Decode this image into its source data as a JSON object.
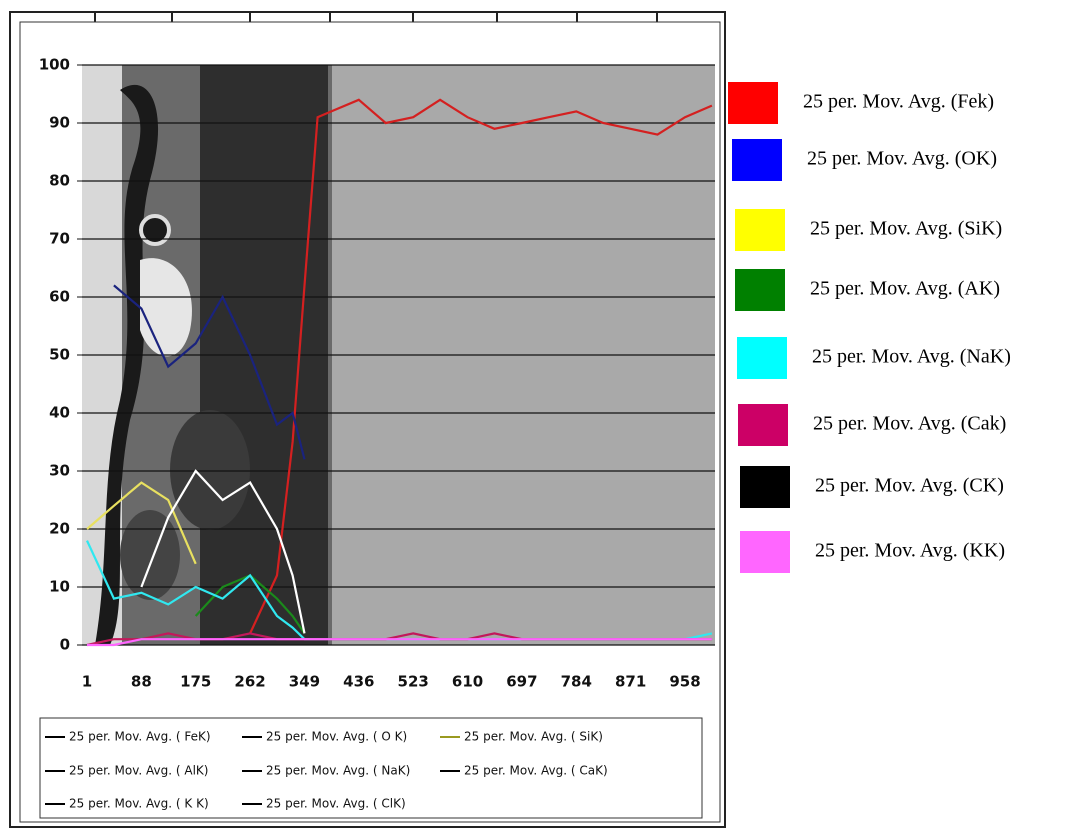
{
  "chart_data": {
    "type": "line",
    "x": [
      1,
      44,
      88,
      131,
      175,
      218,
      262,
      305,
      330,
      349,
      370,
      392,
      436,
      479,
      523,
      566,
      610,
      653,
      697,
      740,
      784,
      827,
      871,
      914,
      958,
      1001
    ],
    "xlim": [
      -7,
      1006
    ],
    "xticks": [
      1,
      88,
      175,
      262,
      349,
      436,
      523,
      610,
      697,
      784,
      871,
      958
    ],
    "ylim": [
      0,
      100
    ],
    "yticks": [
      0,
      10,
      20,
      30,
      40,
      50,
      60,
      70,
      80,
      90,
      100
    ],
    "grid": true,
    "series": [
      {
        "name": "25 per. Mov. Avg. ( FeK)",
        "color": "#d42020",
        "legend_color": "#000000",
        "values": [
          null,
          null,
          null,
          null,
          null,
          null,
          2,
          12,
          35,
          62,
          91,
          92,
          94,
          90,
          91,
          94,
          91,
          89,
          90,
          91,
          92,
          90,
          89,
          88,
          91,
          93
        ]
      },
      {
        "name": "25 per. Mov. Avg. ( O K)",
        "color": "#1a237e",
        "legend_color": "#000000",
        "values": [
          null,
          62,
          58,
          48,
          52,
          60,
          50,
          38,
          40,
          32,
          null,
          null,
          null,
          null,
          null,
          null,
          null,
          null,
          null,
          null,
          null,
          null,
          null,
          null,
          null,
          null
        ]
      },
      {
        "name": "25 per. Mov. Avg. ( SiK)",
        "color": "#e8e060",
        "legend_color": "#9a9a20",
        "values": [
          20,
          24,
          28,
          25,
          14,
          null,
          null,
          null,
          null,
          null,
          null,
          null,
          null,
          null,
          null,
          null,
          null,
          null,
          null,
          null,
          null,
          null,
          null,
          null,
          null,
          null
        ]
      },
      {
        "name": "25 per. Mov. Avg. ( AlK)",
        "color": "#1b8a1b",
        "legend_color": "#000000",
        "values": [
          null,
          null,
          null,
          null,
          5,
          10,
          12,
          8,
          5,
          2,
          null,
          null,
          null,
          null,
          null,
          null,
          null,
          null,
          null,
          null,
          null,
          null,
          null,
          null,
          null,
          null
        ]
      },
      {
        "name": "25 per. Mov. Avg. ( NaK)",
        "color": "#30e8f0",
        "legend_color": "#000000",
        "values": [
          18,
          8,
          9,
          7,
          10,
          8,
          12,
          5,
          3,
          1,
          1,
          1,
          1,
          1,
          1,
          1,
          1,
          1,
          1,
          1,
          1,
          1,
          1,
          1,
          1,
          2
        ]
      },
      {
        "name": "25 per. Mov. Avg. ( CaK)",
        "color": "#c2185b",
        "legend_color": "#000000",
        "values": [
          0,
          1,
          1,
          2,
          1,
          1,
          2,
          1,
          1,
          1,
          1,
          1,
          1,
          1,
          2,
          1,
          1,
          2,
          1,
          1,
          1,
          1,
          1,
          1,
          1,
          1
        ]
      },
      {
        "name": "25 per. Mov. Avg. ( K K)",
        "color": "#ff66ff",
        "legend_color": "#000000",
        "values": [
          0,
          0,
          1,
          1,
          1,
          1,
          1,
          1,
          1,
          1,
          1,
          1,
          1,
          1,
          1,
          1,
          1,
          1,
          1,
          1,
          1,
          1,
          1,
          1,
          1,
          1
        ]
      },
      {
        "name": "25 per. Mov. Avg. ( ClK)",
        "color": "#ffffff",
        "legend_color": "#000000",
        "values": [
          null,
          null,
          10,
          22,
          30,
          25,
          28,
          20,
          12,
          2,
          null,
          null,
          null,
          null,
          null,
          null,
          null,
          null,
          null,
          null,
          null,
          null,
          null,
          null,
          null,
          null
        ]
      }
    ],
    "side_legend": [
      {
        "label": "25 per. Mov. Avg. (Fek)",
        "color": "#ff0000"
      },
      {
        "label": "25 per. Mov. Avg. (OK)",
        "color": "#0000ff"
      },
      {
        "label": "25 per. Mov. Avg. (SiK)",
        "color": "#ffff00"
      },
      {
        "label": "25 per. Mov. Avg. (AK)",
        "color": "#008000"
      },
      {
        "label": "25 per. Mov. Avg. (NaK)",
        "color": "#00ffff"
      },
      {
        "label": "25 per. Mov. Avg. (Cak)",
        "color": "#cc0066"
      },
      {
        "label": "25 per. Mov. Avg. (CK)",
        "color": "#000000"
      },
      {
        "label": "25 per. Mov. Avg. (KK)",
        "color": "#ff66ff"
      }
    ]
  }
}
